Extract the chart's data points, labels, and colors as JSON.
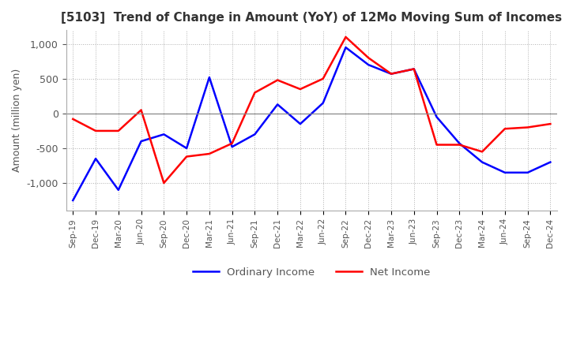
{
  "title": "[5103]  Trend of Change in Amount (YoY) of 12Mo Moving Sum of Incomes",
  "ylabel": "Amount (million yen)",
  "legend": [
    "Ordinary Income",
    "Net Income"
  ],
  "colors": [
    "#0000ff",
    "#ff0000"
  ],
  "x_labels": [
    "Sep-19",
    "Dec-19",
    "Mar-20",
    "Jun-20",
    "Sep-20",
    "Dec-20",
    "Mar-21",
    "Jun-21",
    "Sep-21",
    "Dec-21",
    "Mar-22",
    "Jun-22",
    "Sep-22",
    "Dec-22",
    "Mar-23",
    "Jun-23",
    "Sep-23",
    "Dec-23",
    "Mar-24",
    "Jun-24",
    "Sep-24",
    "Dec-24"
  ],
  "ordinary_income": [
    -1250,
    -650,
    -1100,
    -400,
    -300,
    -500,
    520,
    -480,
    -300,
    130,
    -150,
    150,
    950,
    700,
    570,
    640,
    -50,
    -430,
    -700,
    -850,
    -850,
    -700
  ],
  "net_income": [
    -80,
    -250,
    -250,
    50,
    -1000,
    -620,
    -580,
    -430,
    300,
    480,
    350,
    500,
    1100,
    800,
    570,
    640,
    -450,
    -450,
    -550,
    -220,
    -200,
    -150
  ],
  "ylim": [
    -1400,
    1200
  ],
  "yticks": [
    -1000,
    -500,
    0,
    500,
    1000
  ],
  "background_color": "#ffffff",
  "grid_color": "#b0b0b0"
}
